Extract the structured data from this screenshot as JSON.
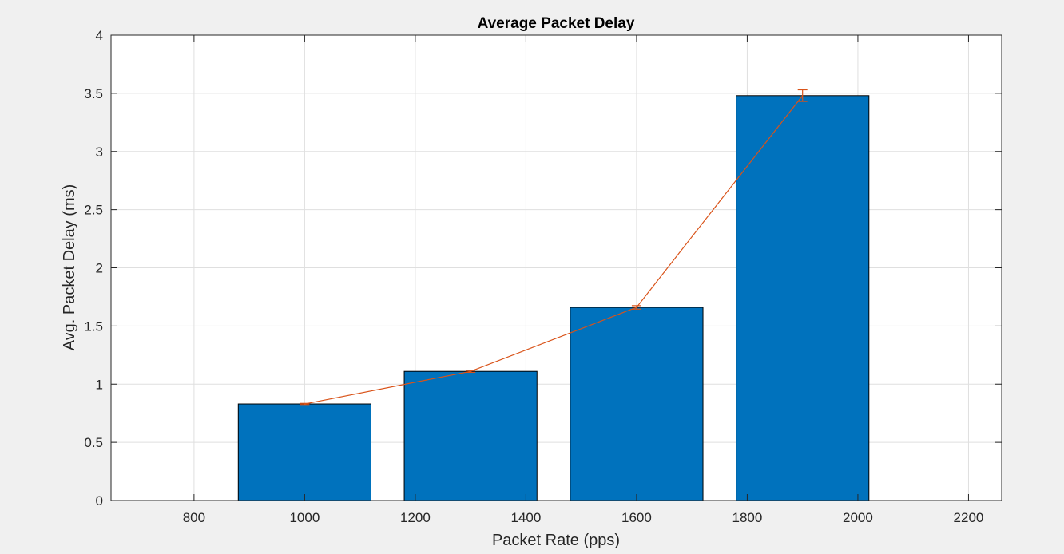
{
  "chart_data": {
    "type": "bar",
    "title": "Average Packet Delay",
    "xlabel": "Packet Rate (pps)",
    "ylabel": "Avg. Packet Delay (ms)",
    "xlim": [
      650,
      2260
    ],
    "ylim": [
      0,
      4
    ],
    "xticks": [
      800,
      1000,
      1200,
      1400,
      1600,
      1800,
      2000,
      2200
    ],
    "xtick_labels": [
      "800",
      "1000",
      "1200",
      "1400",
      "1600",
      "1800",
      "2000",
      "2200"
    ],
    "yticks": [
      0,
      0.5,
      1,
      1.5,
      2,
      2.5,
      3,
      3.5,
      4
    ],
    "ytick_labels": [
      "0",
      "0.5",
      "1",
      "1.5",
      "2",
      "2.5",
      "3",
      "3.5",
      "4"
    ],
    "grid": true,
    "bar_width": 240,
    "series": [
      {
        "type": "bar",
        "x": [
          1000,
          1300,
          1600,
          1900
        ],
        "values": [
          0.83,
          1.11,
          1.66,
          3.48
        ],
        "color": "#0072bd"
      },
      {
        "type": "line-errorbar",
        "x": [
          1000,
          1300,
          1600,
          1900
        ],
        "values": [
          0.83,
          1.11,
          1.66,
          3.48
        ],
        "errors": [
          0.005,
          0.008,
          0.015,
          0.05
        ],
        "color": "#d95319"
      }
    ]
  },
  "colors": {
    "figure_background": "#f0f0f0",
    "axes_background": "#ffffff",
    "grid": "#dfdfdf",
    "axis": "#262626"
  }
}
